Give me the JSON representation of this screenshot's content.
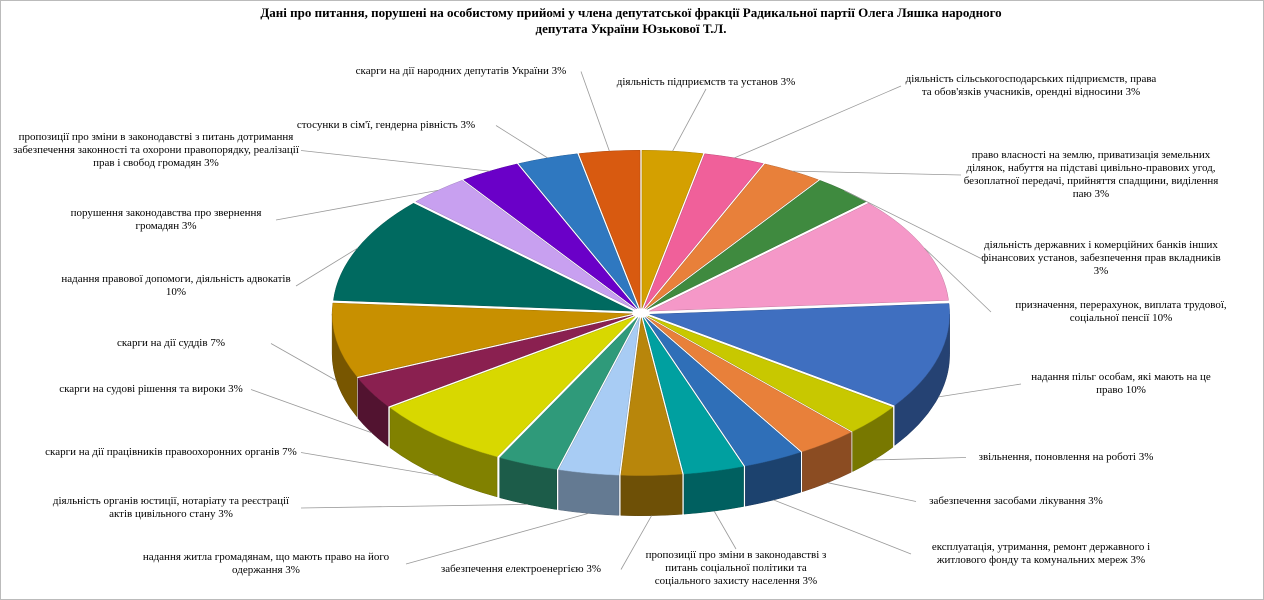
{
  "chart_data": {
    "type": "pie",
    "title": "Дані про питання, порушені на особистому прийомі у члена депутатської фракції Радикальної партії Олега Ляшка  народного депутата України Юзькової Т.Л.",
    "categories": [
      "діяльність підприємств та установ",
      "діяльність сільськогосподарських підприємств, права та обов'язків учасників, орендні відносини",
      "право власності на землю, приватизація земельних ділянок, набуття на підставі цивільно-правових угод, безоплатної передачі, прийняття спадщини, виділення паю",
      "діяльність державних і комерційних банків інших фінансових установ, забезпечення прав вкладників",
      "призначення, перерахунок, виплата трудової, соціальної пенсії",
      "надання пільг особам, які мають на це право",
      "звільнення, поновлення на роботі",
      "забезпечення засобами лікування",
      "експлуатація, утримання, ремонт державного і житлового фонду та комунальних мереж",
      "пропозиції про зміни в законодавстві з питань соціальної політики та соціального захисту населення",
      "забезпечення електроенергією",
      "надання житла громадянам, що мають право на його одержання",
      "діяльність органів юстиції, нотаріату та реєстрації актів цивільного стану",
      "скарги на дії працівників правоохоронних органів",
      "скарги на судові рішення та вироки",
      "скарги на дії суддів",
      "надання правової допомоги, діяльність адвокатів",
      "порушення законодавства про звернення громадян",
      "пропозиції про зміни в законодавстві з питань дотримання забезпечення законності та охорони правопорядку, реалізації прав і свобод громадян",
      "стосунки в сім'ї, гендерна рівність",
      "скарги на дії народних депутатів України"
    ],
    "values": [
      3,
      3,
      3,
      3,
      10,
      10,
      3,
      3,
      3,
      3,
      3,
      3,
      3,
      7,
      3,
      7,
      10,
      3,
      3,
      3,
      3
    ],
    "value_labels": [
      "3%",
      "3%",
      "3%",
      "3%",
      "10%",
      "10%",
      "3%",
      "3%",
      "3%",
      "3%",
      "3%",
      "3%",
      "3%",
      "7%",
      "3%",
      "7%",
      "10%",
      "3%",
      "3%",
      "3%",
      "3%"
    ],
    "colors": [
      "#d4a000",
      "#f0609a",
      "#e8803a",
      "#3f8a3f",
      "#f598c8",
      "#3f6fc0",
      "#c8c800",
      "#e8803a",
      "#2f6fb8",
      "#00a0a0",
      "#b8860b",
      "#a8ccf4",
      "#2f9a7a",
      "#d8d800",
      "#8a2050",
      "#c89000",
      "#006a60",
      "#c8a0f0",
      "#6a00c8",
      "#2f78c0",
      "#d85a10"
    ]
  }
}
